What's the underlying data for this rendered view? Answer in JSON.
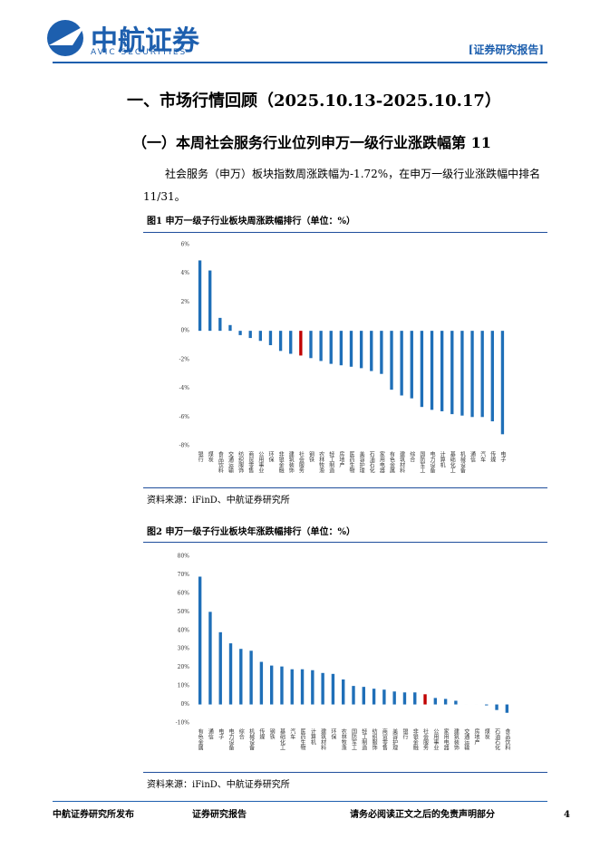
{
  "header": {
    "logo": "中航证券",
    "logo_sub": "AVIC SECURITIES",
    "tag": "[证券研究报告]"
  },
  "section_title": "一、市场行情回顾（2025.10.13-2025.10.17）",
  "subsection_title": "（一）本周社会服务行业位列申万一级行业涨跌幅第 11",
  "paragraph": "社会服务（申万）板块指数周涨跌幅为-1.72%，在申万一级行业涨跌幅中排名11/31。",
  "chart_data": [
    {
      "type": "bar",
      "title": "图1  申万一级子行业板块周涨跌幅排行（单位：%）",
      "source": "资料来源：iFinD、中航证券研究所",
      "categories": [
        "银行",
        "煤炭",
        "食品饮料",
        "交通运输",
        "纺织服饰",
        "商贸零售",
        "公用事业",
        "环保",
        "非银金融",
        "建筑装饰",
        "社会服务",
        "钢铁",
        "农林牧渔",
        "轻工制造",
        "房地产",
        "医药生物",
        "美容护理",
        "石油石化",
        "家用电器",
        "有色金属",
        "建筑材料",
        "综合",
        "国防军工",
        "电力设备",
        "计算机",
        "基础化工",
        "机械设备",
        "通信",
        "汽车",
        "传媒",
        "电子"
      ],
      "values": [
        4.9,
        4.2,
        0.9,
        0.4,
        -0.3,
        -0.5,
        -0.7,
        -1.0,
        -1.4,
        -1.6,
        -1.72,
        -1.9,
        -2.1,
        -2.3,
        -2.4,
        -2.5,
        -2.6,
        -2.8,
        -3.0,
        -4.1,
        -4.5,
        -4.7,
        -5.3,
        -5.5,
        -5.6,
        -5.8,
        -5.9,
        -6.0,
        -6.0,
        -6.3,
        -7.2
      ],
      "colors": [
        "#1f6fb8",
        "#1f6fb8",
        "#1f6fb8",
        "#1f6fb8",
        "#1f6fb8",
        "#1f6fb8",
        "#1f6fb8",
        "#1f6fb8",
        "#1f6fb8",
        "#1f6fb8",
        "#c00000",
        "#1f6fb8",
        "#1f6fb8",
        "#1f6fb8",
        "#1f6fb8",
        "#1f6fb8",
        "#1f6fb8",
        "#1f6fb8",
        "#1f6fb8",
        "#1f6fb8",
        "#1f6fb8",
        "#1f6fb8",
        "#1f6fb8",
        "#1f6fb8",
        "#1f6fb8",
        "#1f6fb8",
        "#1f6fb8",
        "#1f6fb8",
        "#1f6fb8",
        "#1f6fb8",
        "#1f6fb8"
      ],
      "ylim": [
        -8,
        6
      ],
      "yticks": [
        {
          "value": -8,
          "label": "-8%"
        },
        {
          "value": -6,
          "label": "-6%"
        },
        {
          "value": -4,
          "label": "-4%"
        },
        {
          "value": -2,
          "label": "-2%"
        },
        {
          "value": 0,
          "label": "0%"
        },
        {
          "value": 2,
          "label": "2%"
        },
        {
          "value": 4,
          "label": "4%"
        },
        {
          "value": 6,
          "label": "6%"
        }
      ],
      "grid": false
    },
    {
      "type": "bar",
      "title": "图2  申万一级子行业板块年涨跌幅排行（单位：%）",
      "source": "资料来源：iFinD、中航证券研究所",
      "categories": [
        "有色金属",
        "通信",
        "电子",
        "电力设备",
        "综合",
        "机械设备",
        "传媒",
        "钢铁",
        "基础化工",
        "汽车",
        "医药生物",
        "计算机",
        "建筑材料",
        "环保",
        "农林牧渔",
        "国防军工",
        "轻工制造",
        "纺织服饰",
        "商贸零售",
        "美容护理",
        "银行",
        "非银金融",
        "社会服务",
        "公用事业",
        "家用电器",
        "建筑装饰",
        "交通运输",
        "房地产",
        "煤炭",
        "石油石化",
        "食品饮料"
      ],
      "values": [
        69,
        50,
        39,
        33,
        30,
        29,
        23,
        21,
        20.5,
        19,
        19,
        18.5,
        17,
        16.5,
        13.5,
        10,
        9.5,
        8.5,
        8,
        7,
        6.5,
        6.5,
        5.5,
        3.5,
        3,
        2,
        0,
        0,
        -0.5,
        -3,
        -4.5
      ],
      "colors": [
        "#1f6fb8",
        "#1f6fb8",
        "#1f6fb8",
        "#1f6fb8",
        "#1f6fb8",
        "#1f6fb8",
        "#1f6fb8",
        "#1f6fb8",
        "#1f6fb8",
        "#1f6fb8",
        "#1f6fb8",
        "#1f6fb8",
        "#1f6fb8",
        "#1f6fb8",
        "#1f6fb8",
        "#1f6fb8",
        "#1f6fb8",
        "#1f6fb8",
        "#1f6fb8",
        "#1f6fb8",
        "#1f6fb8",
        "#1f6fb8",
        "#c00000",
        "#1f6fb8",
        "#1f6fb8",
        "#1f6fb8",
        "#1f6fb8",
        "#1f6fb8",
        "#1f6fb8",
        "#1f6fb8",
        "#1f6fb8"
      ],
      "ylim": [
        -10,
        80
      ],
      "yticks": [
        {
          "value": -10,
          "label": "-10%"
        },
        {
          "value": 0,
          "label": "0%"
        },
        {
          "value": 10,
          "label": "10%"
        },
        {
          "value": 20,
          "label": "20%"
        },
        {
          "value": 30,
          "label": "30%"
        },
        {
          "value": 40,
          "label": "40%"
        },
        {
          "value": 50,
          "label": "50%"
        },
        {
          "value": 60,
          "label": "60%"
        },
        {
          "value": 70,
          "label": "70%"
        },
        {
          "value": 80,
          "label": "80%"
        }
      ],
      "grid": false
    }
  ],
  "footer": {
    "left": "中航证券研究所发布",
    "center": "证券研究报告",
    "right": "请务必阅读正文之后的免责声明部分",
    "page": "4"
  }
}
